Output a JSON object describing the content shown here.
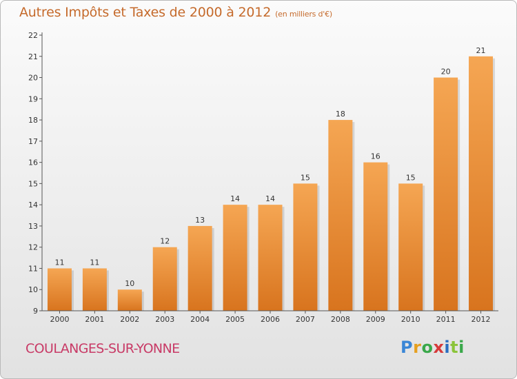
{
  "title": "Autres Impôts et Taxes de 2000 à 2012",
  "unit": "(en milliers d'€)",
  "commune": "COULANGES-SUR-YONNE",
  "logo": {
    "text": "Proxiti"
  },
  "colors": {
    "bar_top": "#f5a653",
    "bar_bottom": "#d8741e",
    "title": "#c56a2b",
    "commune": "#c83a66"
  },
  "chart_data": {
    "type": "bar",
    "categories": [
      "2000",
      "2001",
      "2002",
      "2003",
      "2004",
      "2005",
      "2006",
      "2007",
      "2008",
      "2009",
      "2010",
      "2011",
      "2012"
    ],
    "values": [
      11,
      11,
      10,
      12,
      13,
      14,
      14,
      15,
      18,
      16,
      15,
      20,
      21
    ],
    "ylim": [
      9,
      22
    ],
    "yticks": [
      9,
      10,
      11,
      12,
      13,
      14,
      15,
      16,
      17,
      18,
      19,
      20,
      21,
      22
    ],
    "grid": false,
    "legend": "none"
  }
}
